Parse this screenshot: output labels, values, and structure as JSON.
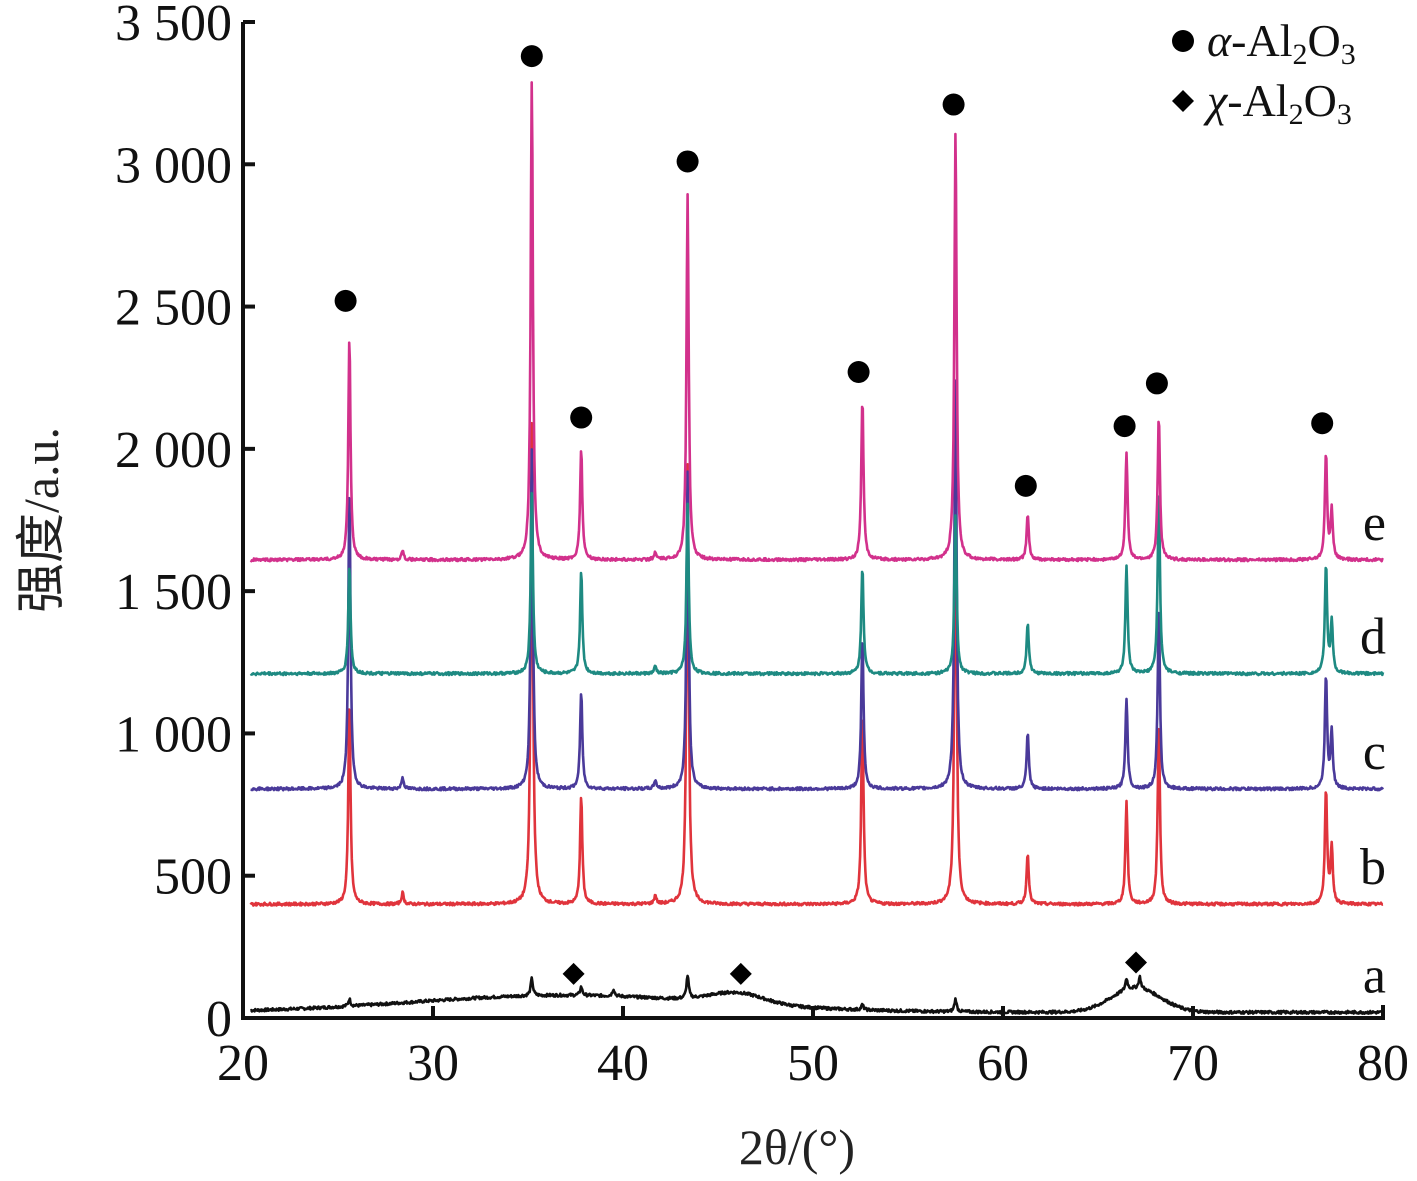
{
  "chart_data": {
    "type": "line",
    "xlabel": "2θ/(°)",
    "ylabel": "强度/a.u.",
    "xlim": [
      20,
      80
    ],
    "ylim": [
      0,
      3500
    ],
    "xticks": [
      20,
      30,
      40,
      50,
      60,
      70,
      80
    ],
    "yticks": [
      0,
      500,
      1000,
      1500,
      2000,
      2500,
      3000,
      3500
    ],
    "ytick_labels": [
      "0",
      "500",
      "1 000",
      "1 500",
      "2 000",
      "2 500",
      "3 000",
      "3 500"
    ],
    "grid": false,
    "legend": {
      "placement": "top-right",
      "entries": [
        {
          "marker": "circle",
          "prefix": "α",
          "formula": "-Al",
          "sub1": "2",
          "mid": "O",
          "sub2": "3"
        },
        {
          "marker": "diamond",
          "prefix": "χ",
          "formula": "-Al",
          "sub1": "2",
          "mid": "O",
          "sub2": "3"
        }
      ]
    },
    "series": [
      {
        "name": "a",
        "color": "#111111",
        "baseline": 20,
        "broad_humps": [
          {
            "center": 37.0,
            "height": 60,
            "width": 8.0
          },
          {
            "center": 46.0,
            "height": 38,
            "width": 1.4
          },
          {
            "center": 67.0,
            "height": 85,
            "width": 1.3
          }
        ],
        "peaks": [
          {
            "x": 25.6,
            "height": 25
          },
          {
            "x": 35.2,
            "height": 60
          },
          {
            "x": 37.8,
            "height": 30
          },
          {
            "x": 39.5,
            "height": 25
          },
          {
            "x": 43.4,
            "height": 80
          },
          {
            "x": 52.6,
            "height": 18
          },
          {
            "x": 57.5,
            "height": 45
          },
          {
            "x": 66.5,
            "height": 40
          },
          {
            "x": 67.2,
            "height": 40
          }
        ]
      },
      {
        "name": "b",
        "color": "#e0343c",
        "baseline": 400,
        "peaks": [
          {
            "x": 25.6,
            "height": 700
          },
          {
            "x": 28.4,
            "height": 40
          },
          {
            "x": 35.2,
            "height": 1700
          },
          {
            "x": 37.8,
            "height": 380
          },
          {
            "x": 41.7,
            "height": 30
          },
          {
            "x": 43.4,
            "height": 1550
          },
          {
            "x": 52.6,
            "height": 680
          },
          {
            "x": 57.5,
            "height": 1550
          },
          {
            "x": 61.3,
            "height": 180
          },
          {
            "x": 66.5,
            "height": 360
          },
          {
            "x": 68.2,
            "height": 640
          },
          {
            "x": 77.0,
            "height": 400
          },
          {
            "x": 77.3,
            "height": 200
          }
        ]
      },
      {
        "name": "c",
        "color": "#4a3a9a",
        "baseline": 805,
        "peaks": [
          {
            "x": 25.6,
            "height": 1050
          },
          {
            "x": 28.4,
            "height": 40
          },
          {
            "x": 35.2,
            "height": 1200
          },
          {
            "x": 37.8,
            "height": 340
          },
          {
            "x": 41.7,
            "height": 30
          },
          {
            "x": 43.4,
            "height": 1120
          },
          {
            "x": 52.6,
            "height": 540
          },
          {
            "x": 57.5,
            "height": 1450
          },
          {
            "x": 61.3,
            "height": 195
          },
          {
            "x": 66.5,
            "height": 320
          },
          {
            "x": 68.2,
            "height": 640
          },
          {
            "x": 77.0,
            "height": 400
          },
          {
            "x": 77.3,
            "height": 200
          }
        ]
      },
      {
        "name": "d",
        "color": "#1e8a82",
        "baseline": 1210,
        "peaks": [
          {
            "x": 25.6,
            "height": 380
          },
          {
            "x": 35.2,
            "height": 640
          },
          {
            "x": 37.8,
            "height": 360
          },
          {
            "x": 41.7,
            "height": 25
          },
          {
            "x": 43.4,
            "height": 600
          },
          {
            "x": 52.6,
            "height": 380
          },
          {
            "x": 57.5,
            "height": 560
          },
          {
            "x": 61.3,
            "height": 180
          },
          {
            "x": 66.5,
            "height": 380
          },
          {
            "x": 68.2,
            "height": 650
          },
          {
            "x": 77.0,
            "height": 380
          },
          {
            "x": 77.3,
            "height": 180
          }
        ]
      },
      {
        "name": "e",
        "color": "#d2318c",
        "baseline": 1610,
        "peaks": [
          {
            "x": 25.6,
            "height": 780
          },
          {
            "x": 28.4,
            "height": 35
          },
          {
            "x": 35.2,
            "height": 1690
          },
          {
            "x": 37.8,
            "height": 390
          },
          {
            "x": 41.7,
            "height": 25
          },
          {
            "x": 43.4,
            "height": 1280
          },
          {
            "x": 52.6,
            "height": 570
          },
          {
            "x": 57.5,
            "height": 1510
          },
          {
            "x": 61.3,
            "height": 160
          },
          {
            "x": 66.5,
            "height": 380
          },
          {
            "x": 68.2,
            "height": 510
          },
          {
            "x": 77.0,
            "height": 370
          },
          {
            "x": 77.3,
            "height": 170
          }
        ]
      }
    ],
    "annotations": [
      {
        "marker": "circle",
        "x": 25.4,
        "y": 2520
      },
      {
        "marker": "circle",
        "x": 35.2,
        "y": 3380
      },
      {
        "marker": "circle",
        "x": 37.8,
        "y": 2110
      },
      {
        "marker": "circle",
        "x": 43.4,
        "y": 3010
      },
      {
        "marker": "circle",
        "x": 52.4,
        "y": 2270
      },
      {
        "marker": "circle",
        "x": 57.4,
        "y": 3210
      },
      {
        "marker": "circle",
        "x": 61.2,
        "y": 1870
      },
      {
        "marker": "circle",
        "x": 66.4,
        "y": 2080
      },
      {
        "marker": "circle",
        "x": 68.1,
        "y": 2230
      },
      {
        "marker": "circle",
        "x": 76.8,
        "y": 2090
      },
      {
        "marker": "diamond",
        "x": 37.4,
        "y": 155
      },
      {
        "marker": "diamond",
        "x": 46.2,
        "y": 155
      },
      {
        "marker": "diamond",
        "x": 67.0,
        "y": 195
      }
    ]
  }
}
